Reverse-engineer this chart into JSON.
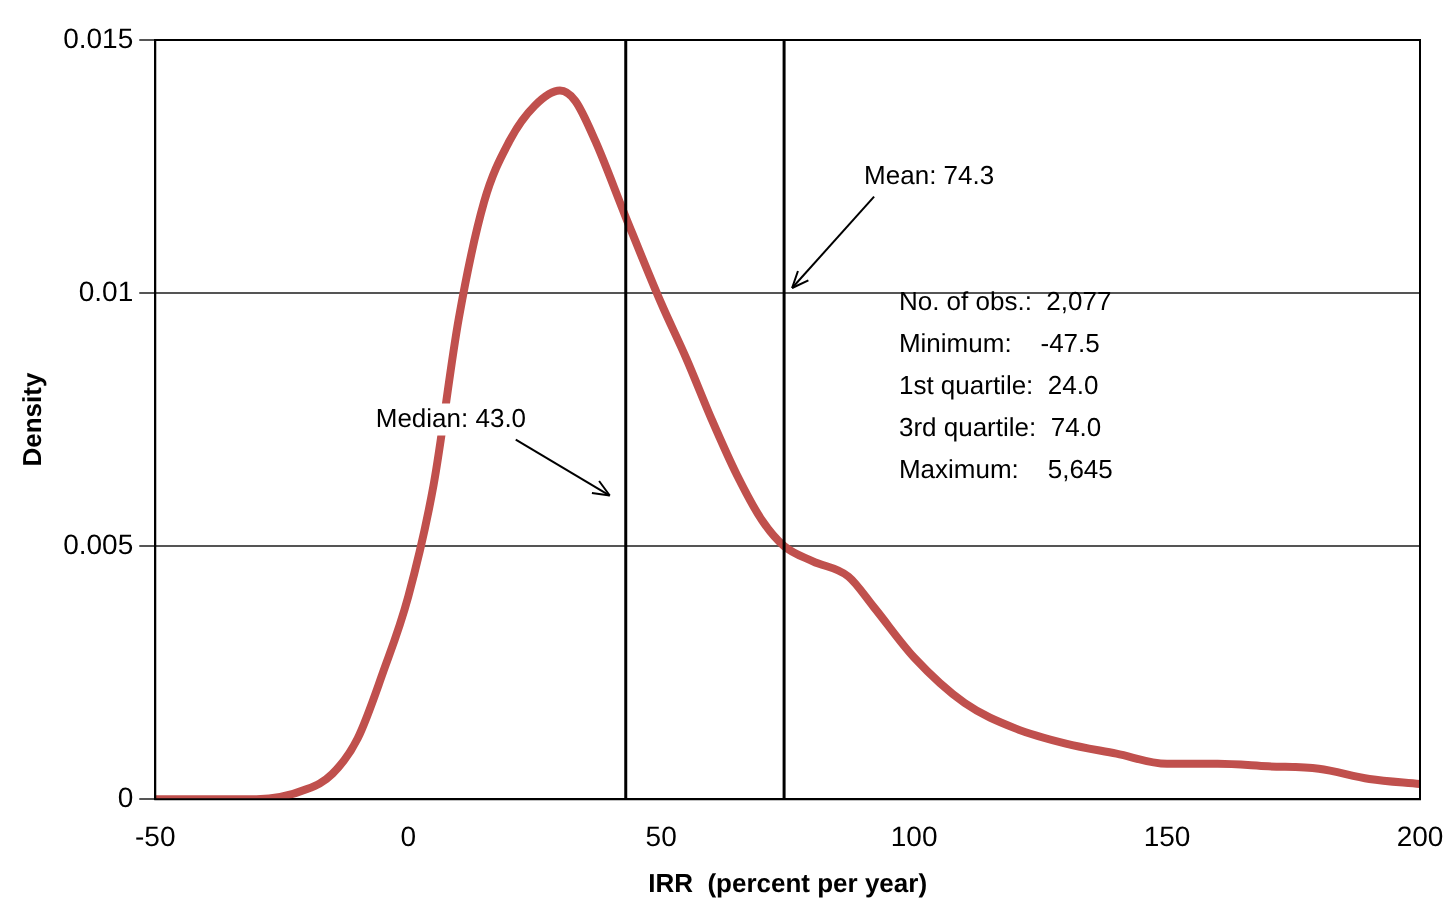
{
  "chart_data": {
    "type": "line",
    "xlabel": "IRR  (percent per year)",
    "ylabel": "Density",
    "x": [
      -50,
      -30,
      -20,
      -15,
      -10,
      -5,
      0,
      5,
      10,
      15,
      20,
      25,
      30,
      33,
      37,
      43,
      50,
      55,
      60,
      65,
      70,
      74.3,
      80,
      87,
      92,
      100,
      110,
      120,
      130,
      140,
      150,
      160,
      170,
      180,
      190,
      200
    ],
    "series": [
      {
        "color": "#c0504d",
        "values": [
          0,
          0,
          0.0002,
          0.0005,
          0.0012,
          0.0025,
          0.004,
          0.0062,
          0.0095,
          0.0118,
          0.013,
          0.0137,
          0.014,
          0.0138,
          0.013,
          0.0115,
          0.0098,
          0.0087,
          0.0075,
          0.0064,
          0.0055,
          0.005,
          0.0047,
          0.0044,
          0.0038,
          0.0028,
          0.0019,
          0.0014,
          0.0011,
          0.0009,
          0.0007,
          0.0007,
          0.00065,
          0.0006,
          0.0004,
          0.0003
        ]
      }
    ],
    "xlim": [
      -50,
      200
    ],
    "xticks": [
      -50,
      0,
      50,
      100,
      150,
      200
    ],
    "ylim": [
      0,
      0.015
    ],
    "yticks": [
      0,
      0.005,
      0.01,
      0.015
    ],
    "ref_lines": [
      {
        "axis": "x",
        "value": 43,
        "label": "Median: 43.0",
        "color": "#000000"
      },
      {
        "axis": "x",
        "value": 74.3,
        "label": "Mean: 74.3",
        "color": "#000000"
      }
    ],
    "annotations": [
      "No. of obs.:  2,077",
      "Minimum:    -47.5",
      "1st quartile:  24.0",
      "3rd quartile:  74.0",
      "Maximum:    5,645"
    ],
    "grid": "y",
    "legend": false,
    "marker": "none",
    "line_style": "solid"
  }
}
